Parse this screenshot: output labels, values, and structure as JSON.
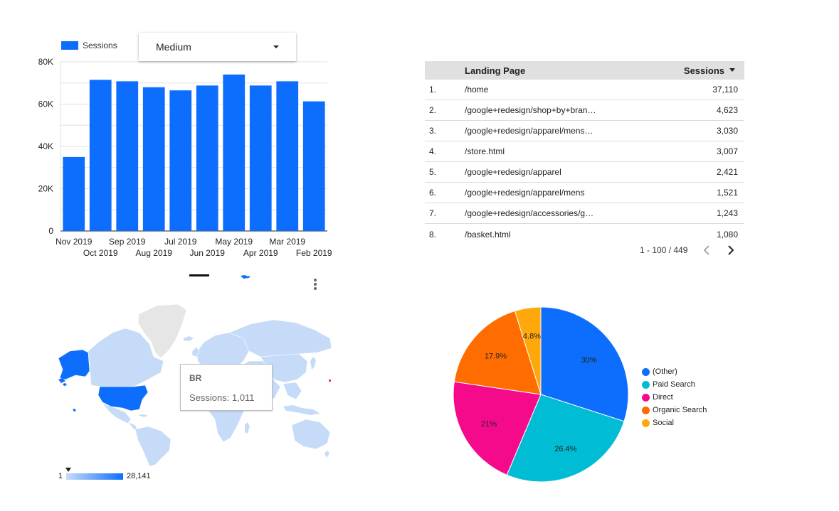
{
  "bar_chart": {
    "legend": "Sessions",
    "legend_color": "#0d6efd",
    "dropdown": {
      "label": "Medium"
    }
  },
  "chart_data": [
    {
      "type": "bar",
      "categories": [
        "Nov 2019",
        "Oct 2019",
        "Sep 2019",
        "Aug 2019",
        "Jul 2019",
        "Jun 2019",
        "May 2019",
        "Apr 2019",
        "Mar 2019",
        "Feb 2019"
      ],
      "series": [
        {
          "name": "Sessions",
          "values": [
            35000,
            71500,
            70800,
            68000,
            66500,
            68800,
            74000,
            68800,
            70800,
            61300
          ]
        }
      ],
      "ylim": [
        0,
        80000
      ],
      "yticks": [
        0,
        20000,
        40000,
        60000,
        80000
      ],
      "ytick_labels": [
        "0",
        "20K",
        "40K",
        "60K",
        "80K"
      ],
      "grid": true,
      "legend_position": "top-left",
      "bar_color": "#0d6efd"
    },
    {
      "type": "pie",
      "labels": [
        "(Other)",
        "Paid Search",
        "Direct",
        "Organic Search",
        "Social"
      ],
      "values": [
        30,
        26.4,
        21,
        17.9,
        4.8
      ],
      "value_labels": [
        "30%",
        "26.4%",
        "21%",
        "17.9%",
        "4.8%"
      ],
      "colors": [
        "#0d6efd",
        "#00bcd4",
        "#f50a8c",
        "#ff6d00",
        "#ffa80c"
      ],
      "legend_position": "right"
    }
  ],
  "table": {
    "header": {
      "landing_page": "Landing Page",
      "sessions": "Sessions"
    },
    "rows": [
      {
        "idx": "1.",
        "page": "/home",
        "sessions": "37,110"
      },
      {
        "idx": "2.",
        "page": "/google+redesign/shop+by+bran…",
        "sessions": "4,623"
      },
      {
        "idx": "3.",
        "page": "/google+redesign/apparel/mens…",
        "sessions": "3,030"
      },
      {
        "idx": "4.",
        "page": "/store.html",
        "sessions": "3,007"
      },
      {
        "idx": "5.",
        "page": "/google+redesign/apparel",
        "sessions": "2,421"
      },
      {
        "idx": "6.",
        "page": "/google+redesign/apparel/mens",
        "sessions": "1,521"
      },
      {
        "idx": "7.",
        "page": "/google+redesign/accessories/g…",
        "sessions": "1,243"
      },
      {
        "idx": "8.",
        "page": "/basket.html",
        "sessions": "1,080"
      }
    ],
    "pager": "1 - 100 / 449"
  },
  "map": {
    "tooltip": {
      "code": "BR",
      "line": "Sessions: 1,011"
    },
    "scale_min": "1",
    "scale_max": "28,141",
    "land_color": "#c5dbf7",
    "highlight_color": "#0d6efd",
    "nodata_color": "#e6e6e6"
  }
}
